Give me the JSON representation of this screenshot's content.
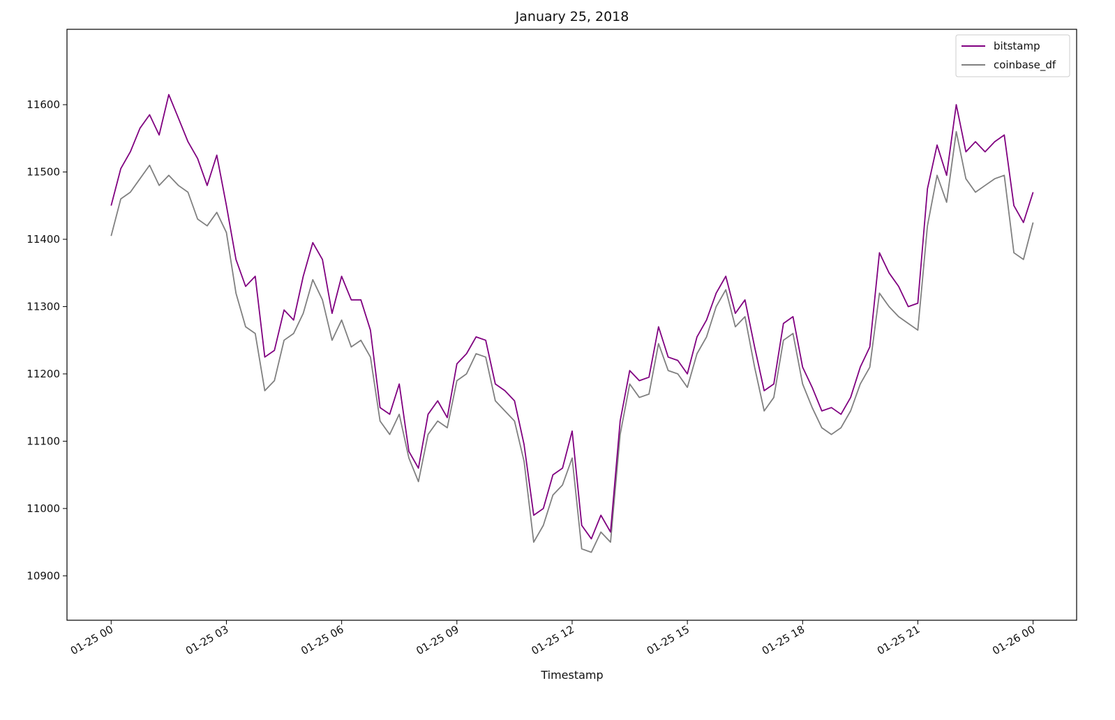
{
  "chart_data": {
    "type": "line",
    "title": "January 25, 2018",
    "xlabel": "Timestamp",
    "ylabel": "",
    "x_ticks": [
      "01-25 00",
      "01-25 03",
      "01-25 06",
      "01-25 09",
      "01-25 12",
      "01-25 15",
      "01-25 18",
      "01-25 21",
      "01-26 00"
    ],
    "y_ticks": [
      10900,
      11000,
      11100,
      11200,
      11300,
      11400,
      11500,
      11600
    ],
    "xlim": [
      "2018-01-24 22:51",
      "2018-01-26 01:08"
    ],
    "ylim": [
      10834,
      11712
    ],
    "grid": false,
    "legend_position": "top-right",
    "series": [
      {
        "name": "bitstamp",
        "color": "#800080",
        "points": [
          [
            "2018-01-25 00:00",
            11450
          ],
          [
            "2018-01-25 00:15",
            11505
          ],
          [
            "2018-01-25 00:30",
            11530
          ],
          [
            "2018-01-25 00:45",
            11565
          ],
          [
            "2018-01-25 01:00",
            11585
          ],
          [
            "2018-01-25 01:15",
            11555
          ],
          [
            "2018-01-25 01:30",
            11615
          ],
          [
            "2018-01-25 01:45",
            11580
          ],
          [
            "2018-01-25 02:00",
            11545
          ],
          [
            "2018-01-25 02:15",
            11520
          ],
          [
            "2018-01-25 02:30",
            11480
          ],
          [
            "2018-01-25 02:45",
            11525
          ],
          [
            "2018-01-25 03:00",
            11450
          ],
          [
            "2018-01-25 03:15",
            11370
          ],
          [
            "2018-01-25 03:30",
            11330
          ],
          [
            "2018-01-25 03:45",
            11345
          ],
          [
            "2018-01-25 04:00",
            11225
          ],
          [
            "2018-01-25 04:15",
            11235
          ],
          [
            "2018-01-25 04:30",
            11295
          ],
          [
            "2018-01-25 04:45",
            11280
          ],
          [
            "2018-01-25 05:00",
            11345
          ],
          [
            "2018-01-25 05:15",
            11395
          ],
          [
            "2018-01-25 05:30",
            11370
          ],
          [
            "2018-01-25 05:45",
            11290
          ],
          [
            "2018-01-25 06:00",
            11345
          ],
          [
            "2018-01-25 06:15",
            11310
          ],
          [
            "2018-01-25 06:30",
            11310
          ],
          [
            "2018-01-25 06:45",
            11265
          ],
          [
            "2018-01-25 07:00",
            11150
          ],
          [
            "2018-01-25 07:15",
            11140
          ],
          [
            "2018-01-25 07:30",
            11185
          ],
          [
            "2018-01-25 07:45",
            11085
          ],
          [
            "2018-01-25 08:00",
            11060
          ],
          [
            "2018-01-25 08:15",
            11140
          ],
          [
            "2018-01-25 08:30",
            11160
          ],
          [
            "2018-01-25 08:45",
            11135
          ],
          [
            "2018-01-25 09:00",
            11215
          ],
          [
            "2018-01-25 09:15",
            11230
          ],
          [
            "2018-01-25 09:30",
            11255
          ],
          [
            "2018-01-25 09:45",
            11250
          ],
          [
            "2018-01-25 10:00",
            11185
          ],
          [
            "2018-01-25 10:15",
            11175
          ],
          [
            "2018-01-25 10:30",
            11160
          ],
          [
            "2018-01-25 10:45",
            11095
          ],
          [
            "2018-01-25 11:00",
            10990
          ],
          [
            "2018-01-25 11:15",
            11000
          ],
          [
            "2018-01-25 11:30",
            11050
          ],
          [
            "2018-01-25 11:45",
            11060
          ],
          [
            "2018-01-25 12:00",
            11115
          ],
          [
            "2018-01-25 12:15",
            10975
          ],
          [
            "2018-01-25 12:30",
            10955
          ],
          [
            "2018-01-25 12:45",
            10990
          ],
          [
            "2018-01-25 13:00",
            10965
          ],
          [
            "2018-01-25 13:15",
            11130
          ],
          [
            "2018-01-25 13:30",
            11205
          ],
          [
            "2018-01-25 13:45",
            11190
          ],
          [
            "2018-01-25 14:00",
            11195
          ],
          [
            "2018-01-25 14:15",
            11270
          ],
          [
            "2018-01-25 14:30",
            11225
          ],
          [
            "2018-01-25 14:45",
            11220
          ],
          [
            "2018-01-25 15:00",
            11200
          ],
          [
            "2018-01-25 15:15",
            11255
          ],
          [
            "2018-01-25 15:30",
            11280
          ],
          [
            "2018-01-25 15:45",
            11320
          ],
          [
            "2018-01-25 16:00",
            11345
          ],
          [
            "2018-01-25 16:15",
            11290
          ],
          [
            "2018-01-25 16:30",
            11310
          ],
          [
            "2018-01-25 16:45",
            11240
          ],
          [
            "2018-01-25 17:00",
            11175
          ],
          [
            "2018-01-25 17:15",
            11185
          ],
          [
            "2018-01-25 17:30",
            11275
          ],
          [
            "2018-01-25 17:45",
            11285
          ],
          [
            "2018-01-25 18:00",
            11210
          ],
          [
            "2018-01-25 18:15",
            11180
          ],
          [
            "2018-01-25 18:30",
            11145
          ],
          [
            "2018-01-25 18:45",
            11150
          ],
          [
            "2018-01-25 19:00",
            11140
          ],
          [
            "2018-01-25 19:15",
            11165
          ],
          [
            "2018-01-25 19:30",
            11210
          ],
          [
            "2018-01-25 19:45",
            11240
          ],
          [
            "2018-01-25 20:00",
            11380
          ],
          [
            "2018-01-25 20:15",
            11350
          ],
          [
            "2018-01-25 20:30",
            11330
          ],
          [
            "2018-01-25 20:45",
            11300
          ],
          [
            "2018-01-25 21:00",
            11305
          ],
          [
            "2018-01-25 21:15",
            11475
          ],
          [
            "2018-01-25 21:30",
            11540
          ],
          [
            "2018-01-25 21:45",
            11495
          ],
          [
            "2018-01-25 22:00",
            11600
          ],
          [
            "2018-01-25 22:15",
            11530
          ],
          [
            "2018-01-25 22:30",
            11545
          ],
          [
            "2018-01-25 22:45",
            11530
          ],
          [
            "2018-01-25 23:00",
            11545
          ],
          [
            "2018-01-25 23:15",
            11555
          ],
          [
            "2018-01-25 23:30",
            11450
          ],
          [
            "2018-01-25 23:45",
            11425
          ],
          [
            "2018-01-26 00:00",
            11470
          ]
        ]
      },
      {
        "name": "coinbase_df",
        "color": "#808080",
        "points": [
          [
            "2018-01-25 00:00",
            11405
          ],
          [
            "2018-01-25 00:15",
            11460
          ],
          [
            "2018-01-25 00:30",
            11470
          ],
          [
            "2018-01-25 00:45",
            11490
          ],
          [
            "2018-01-25 01:00",
            11510
          ],
          [
            "2018-01-25 01:15",
            11480
          ],
          [
            "2018-01-25 01:30",
            11495
          ],
          [
            "2018-01-25 01:45",
            11480
          ],
          [
            "2018-01-25 02:00",
            11470
          ],
          [
            "2018-01-25 02:15",
            11430
          ],
          [
            "2018-01-25 02:30",
            11420
          ],
          [
            "2018-01-25 02:45",
            11440
          ],
          [
            "2018-01-25 03:00",
            11410
          ],
          [
            "2018-01-25 03:15",
            11320
          ],
          [
            "2018-01-25 03:30",
            11270
          ],
          [
            "2018-01-25 03:45",
            11260
          ],
          [
            "2018-01-25 04:00",
            11175
          ],
          [
            "2018-01-25 04:15",
            11190
          ],
          [
            "2018-01-25 04:30",
            11250
          ],
          [
            "2018-01-25 04:45",
            11260
          ],
          [
            "2018-01-25 05:00",
            11290
          ],
          [
            "2018-01-25 05:15",
            11340
          ],
          [
            "2018-01-25 05:30",
            11310
          ],
          [
            "2018-01-25 05:45",
            11250
          ],
          [
            "2018-01-25 06:00",
            11280
          ],
          [
            "2018-01-25 06:15",
            11240
          ],
          [
            "2018-01-25 06:30",
            11250
          ],
          [
            "2018-01-25 06:45",
            11225
          ],
          [
            "2018-01-25 07:00",
            11130
          ],
          [
            "2018-01-25 07:15",
            11110
          ],
          [
            "2018-01-25 07:30",
            11140
          ],
          [
            "2018-01-25 07:45",
            11075
          ],
          [
            "2018-01-25 08:00",
            11040
          ],
          [
            "2018-01-25 08:15",
            11110
          ],
          [
            "2018-01-25 08:30",
            11130
          ],
          [
            "2018-01-25 08:45",
            11120
          ],
          [
            "2018-01-25 09:00",
            11190
          ],
          [
            "2018-01-25 09:15",
            11200
          ],
          [
            "2018-01-25 09:30",
            11230
          ],
          [
            "2018-01-25 09:45",
            11225
          ],
          [
            "2018-01-25 10:00",
            11160
          ],
          [
            "2018-01-25 10:15",
            11145
          ],
          [
            "2018-01-25 10:30",
            11130
          ],
          [
            "2018-01-25 10:45",
            11070
          ],
          [
            "2018-01-25 11:00",
            10950
          ],
          [
            "2018-01-25 11:15",
            10975
          ],
          [
            "2018-01-25 11:30",
            11020
          ],
          [
            "2018-01-25 11:45",
            11035
          ],
          [
            "2018-01-25 12:00",
            11075
          ],
          [
            "2018-01-25 12:15",
            10940
          ],
          [
            "2018-01-25 12:30",
            10935
          ],
          [
            "2018-01-25 12:45",
            10965
          ],
          [
            "2018-01-25 13:00",
            10950
          ],
          [
            "2018-01-25 13:15",
            11110
          ],
          [
            "2018-01-25 13:30",
            11185
          ],
          [
            "2018-01-25 13:45",
            11165
          ],
          [
            "2018-01-25 14:00",
            11170
          ],
          [
            "2018-01-25 14:15",
            11245
          ],
          [
            "2018-01-25 14:30",
            11205
          ],
          [
            "2018-01-25 14:45",
            11200
          ],
          [
            "2018-01-25 15:00",
            11180
          ],
          [
            "2018-01-25 15:15",
            11230
          ],
          [
            "2018-01-25 15:30",
            11255
          ],
          [
            "2018-01-25 15:45",
            11300
          ],
          [
            "2018-01-25 16:00",
            11325
          ],
          [
            "2018-01-25 16:15",
            11270
          ],
          [
            "2018-01-25 16:30",
            11285
          ],
          [
            "2018-01-25 16:45",
            11210
          ],
          [
            "2018-01-25 17:00",
            11145
          ],
          [
            "2018-01-25 17:15",
            11165
          ],
          [
            "2018-01-25 17:30",
            11250
          ],
          [
            "2018-01-25 17:45",
            11260
          ],
          [
            "2018-01-25 18:00",
            11185
          ],
          [
            "2018-01-25 18:15",
            11150
          ],
          [
            "2018-01-25 18:30",
            11120
          ],
          [
            "2018-01-25 18:45",
            11110
          ],
          [
            "2018-01-25 19:00",
            11120
          ],
          [
            "2018-01-25 19:15",
            11145
          ],
          [
            "2018-01-25 19:30",
            11185
          ],
          [
            "2018-01-25 19:45",
            11210
          ],
          [
            "2018-01-25 20:00",
            11320
          ],
          [
            "2018-01-25 20:15",
            11300
          ],
          [
            "2018-01-25 20:30",
            11285
          ],
          [
            "2018-01-25 20:45",
            11275
          ],
          [
            "2018-01-25 21:00",
            11265
          ],
          [
            "2018-01-25 21:15",
            11420
          ],
          [
            "2018-01-25 21:30",
            11495
          ],
          [
            "2018-01-25 21:45",
            11455
          ],
          [
            "2018-01-25 22:00",
            11560
          ],
          [
            "2018-01-25 22:15",
            11490
          ],
          [
            "2018-01-25 22:30",
            11470
          ],
          [
            "2018-01-25 22:45",
            11480
          ],
          [
            "2018-01-25 23:00",
            11490
          ],
          [
            "2018-01-25 23:15",
            11495
          ],
          [
            "2018-01-25 23:30",
            11380
          ],
          [
            "2018-01-25 23:45",
            11370
          ],
          [
            "2018-01-26 00:00",
            11425
          ]
        ]
      }
    ]
  }
}
